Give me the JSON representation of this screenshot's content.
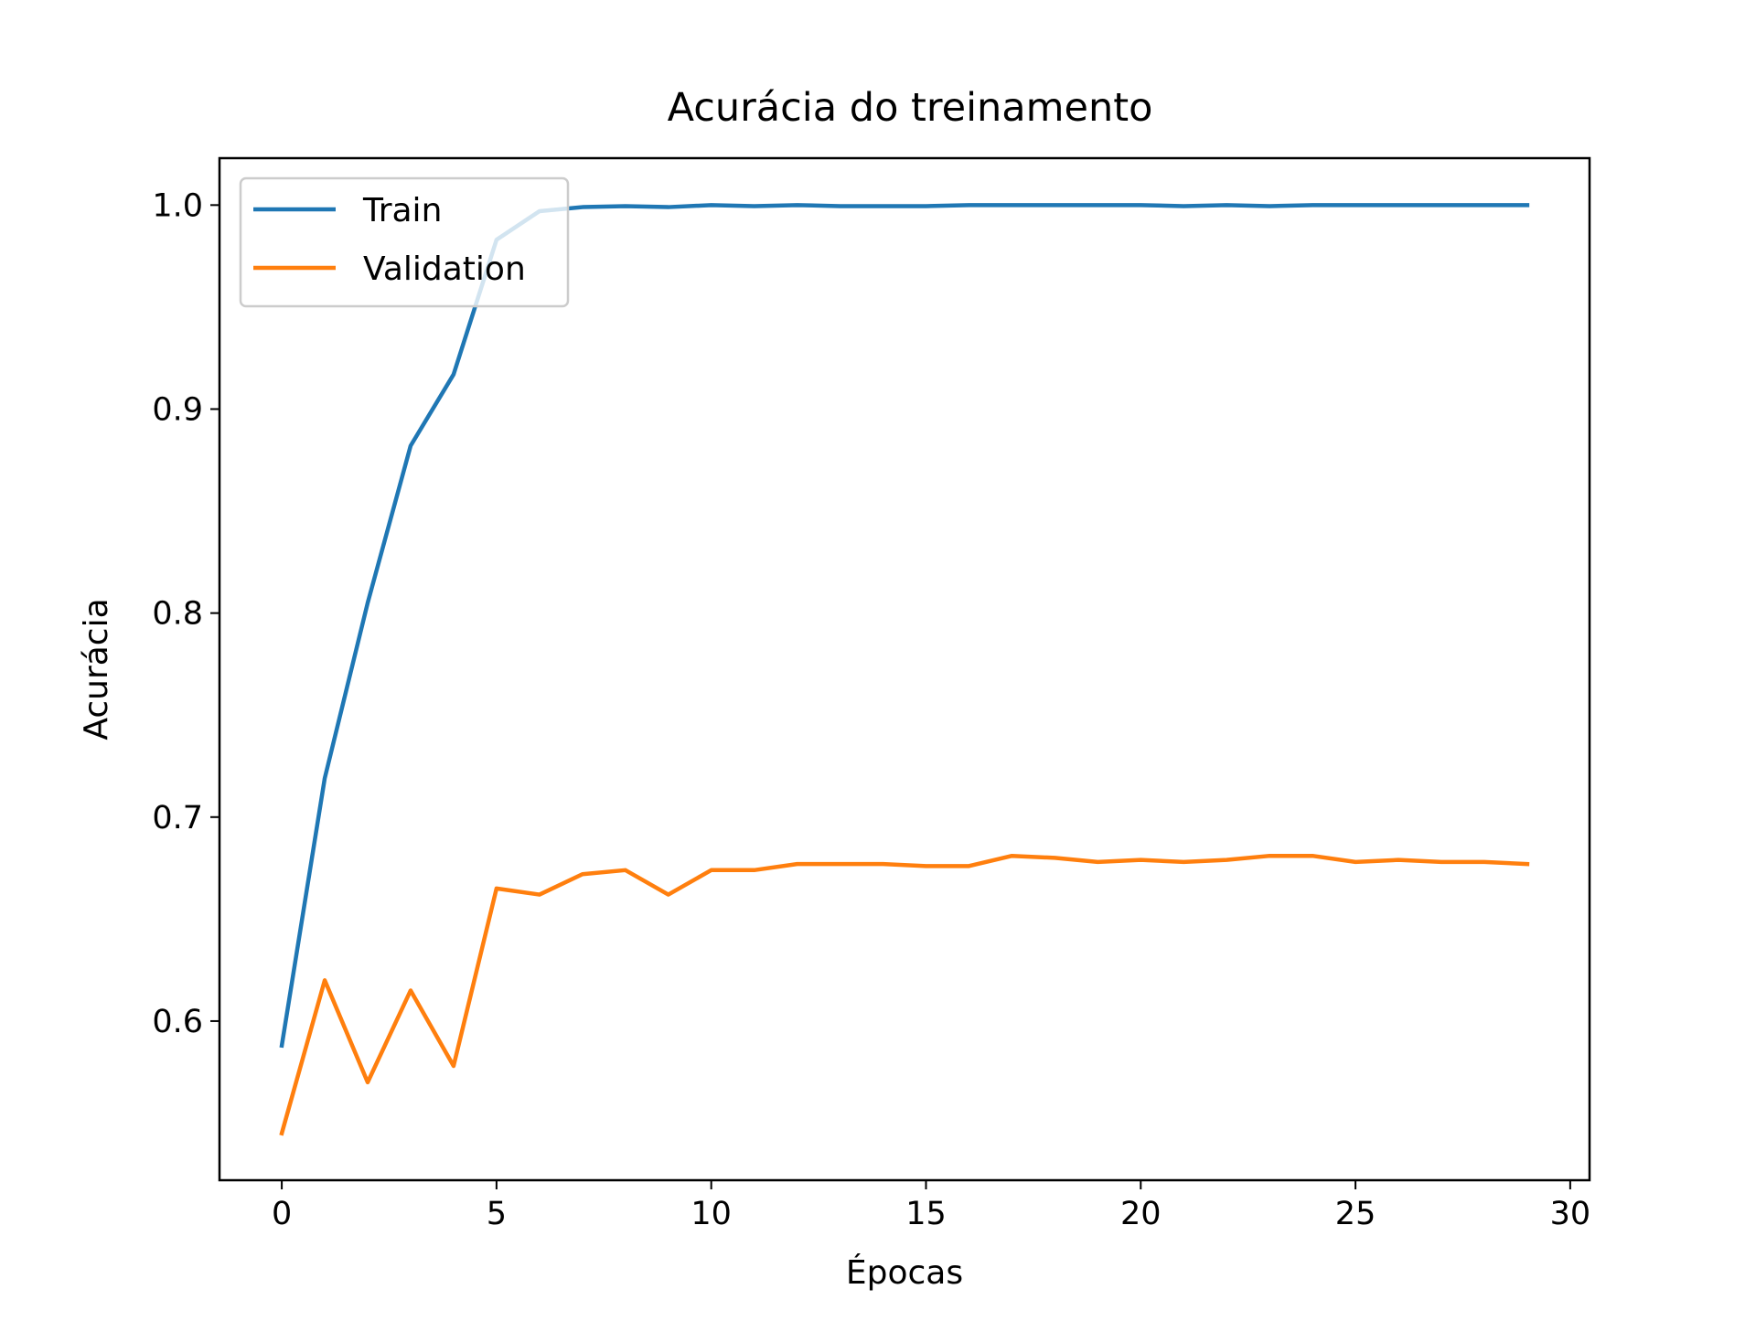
{
  "chart_data": {
    "type": "line",
    "title": "Acurácia do treinamento",
    "xlabel": "Épocas",
    "ylabel": "Acurácia",
    "xlim": [
      -1.45,
      30.45
    ],
    "ylim": [
      0.522,
      1.023
    ],
    "xticks": [
      0,
      5,
      10,
      15,
      20,
      25,
      30
    ],
    "xtick_labels": [
      "0",
      "5",
      "10",
      "15",
      "20",
      "25",
      "30"
    ],
    "yticks": [
      0.6,
      0.7,
      0.8,
      0.9,
      1.0
    ],
    "ytick_labels": [
      "0.6",
      "0.7",
      "0.8",
      "0.9",
      "1.0"
    ],
    "grid": false,
    "legend": {
      "placement": "upper-left"
    },
    "x": [
      0,
      1,
      2,
      3,
      4,
      5,
      6,
      7,
      8,
      9,
      10,
      11,
      12,
      13,
      14,
      15,
      16,
      17,
      18,
      19,
      20,
      21,
      22,
      23,
      24,
      25,
      26,
      27,
      28,
      29
    ],
    "series": [
      {
        "name": "Train",
        "color": "#1f77b4",
        "values": [
          0.588,
          0.719,
          0.805,
          0.882,
          0.917,
          0.983,
          0.997,
          0.999,
          0.9995,
          0.999,
          1.0,
          0.9995,
          1.0,
          0.9995,
          0.9995,
          0.9995,
          1.0,
          1.0,
          1.0,
          1.0,
          1.0,
          0.9995,
          1.0,
          0.9995,
          1.0,
          1.0,
          1.0,
          1.0,
          1.0,
          1.0
        ]
      },
      {
        "name": "Validation",
        "color": "#ff7f0e",
        "values": [
          0.545,
          0.62,
          0.57,
          0.615,
          0.578,
          0.665,
          0.662,
          0.672,
          0.674,
          0.662,
          0.674,
          0.674,
          0.677,
          0.677,
          0.677,
          0.676,
          0.676,
          0.681,
          0.68,
          0.678,
          0.679,
          0.678,
          0.679,
          0.681,
          0.681,
          0.678,
          0.679,
          0.678,
          0.678,
          0.677
        ]
      }
    ]
  }
}
